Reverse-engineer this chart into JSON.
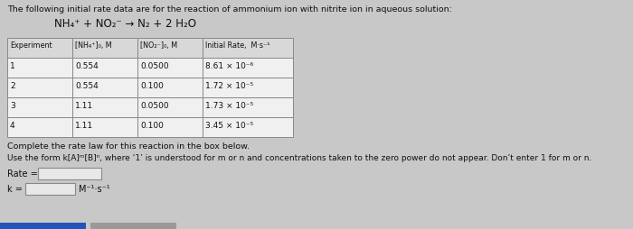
{
  "title": "The following initial rate data are for the reaction of ammonium ion with nitrite ion in aqueous solution:",
  "equation": "NH₄⁺ + NO₂⁻ → N₂ + 2 H₂O",
  "col_headers": [
    "Experiment",
    "[NH₄⁺]₀, M",
    "[NO₂⁻]₀, M",
    "Initial Rate,  M·s⁻¹"
  ],
  "rows": [
    [
      "1",
      "0.554",
      "0.0500",
      "8.61 × 10⁻⁶"
    ],
    [
      "2",
      "0.554",
      "0.100",
      "1.72 × 10⁻⁵"
    ],
    [
      "3",
      "1.11",
      "0.0500",
      "1.73 × 10⁻⁵"
    ],
    [
      "4",
      "1.11",
      "0.100",
      "3.45 × 10⁻⁵"
    ]
  ],
  "instruction1": "Complete the rate law for this reaction in the box below.",
  "instruction2": "Use the form k[A]ᵐ[B]ⁿ, where ‘1’ is understood for m or n and concentrations taken to the zero power do not appear. Don’t enter 1 for m or n.",
  "rate_label": "Rate =",
  "k_label": "k =",
  "k_units": "M⁻¹·s⁻¹",
  "bg_color": "#c8c8c8",
  "table_bg_white": "#f0f0f0",
  "table_header_bg": "#d8d8d8",
  "box_color": "#e8e8e8",
  "text_color": "#111111",
  "border_color": "#888888",
  "bar1_color": "#2255bb",
  "bar2_color": "#999999"
}
